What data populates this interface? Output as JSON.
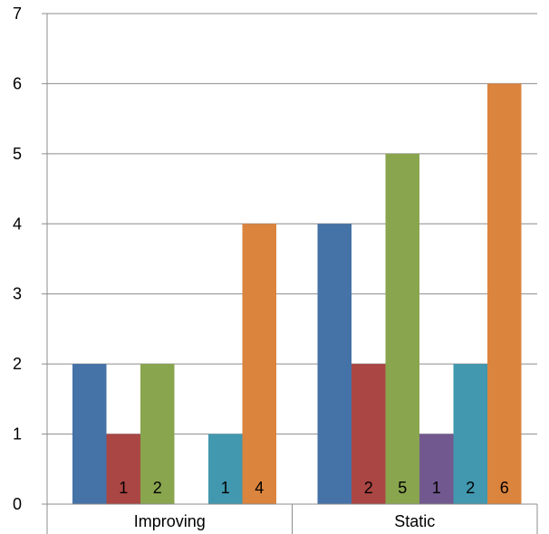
{
  "chart_data": {
    "type": "bar",
    "categories": [
      "Improving",
      "Static"
    ],
    "series": [
      {
        "values": [
          2,
          4
        ],
        "color": "#4572a7",
        "show_labels": false
      },
      {
        "values": [
          1,
          2
        ],
        "color": "#aa4643",
        "show_labels": true
      },
      {
        "values": [
          2,
          5
        ],
        "color": "#89a54e",
        "show_labels": true
      },
      {
        "values": [
          0,
          1
        ],
        "color": "#71588f",
        "show_labels": true
      },
      {
        "values": [
          1,
          2
        ],
        "color": "#4198af",
        "show_labels": true
      },
      {
        "values": [
          4,
          6
        ],
        "color": "#db843d",
        "show_labels": true
      }
    ],
    "ylim": [
      0,
      7
    ],
    "yticks": [
      0,
      1,
      2,
      3,
      4,
      5,
      6,
      7
    ],
    "grid": true,
    "legend": "none",
    "title": "",
    "xlabel": "",
    "ylabel": ""
  }
}
